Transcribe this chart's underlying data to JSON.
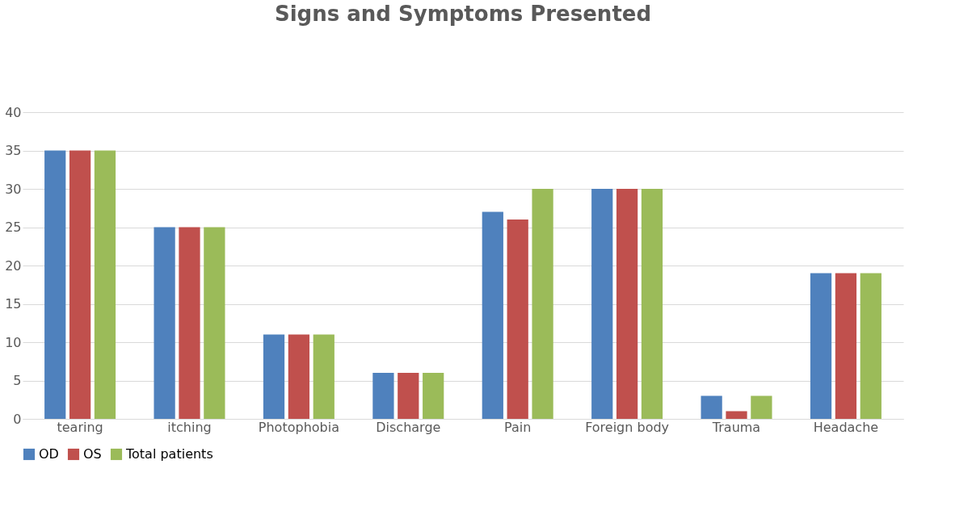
{
  "chart_data": {
    "type": "bar",
    "title": "Signs and Symptoms Presented",
    "categories": [
      "tearing",
      "itching",
      "Photophobia",
      "Discharge",
      "Pain",
      "Foreign body",
      "Trauma",
      "Headache"
    ],
    "series": [
      {
        "name": "OD",
        "color": "#4f81bd",
        "values": [
          35,
          25,
          11,
          6,
          27,
          30,
          3,
          19
        ]
      },
      {
        "name": "OS",
        "color": "#c0504d",
        "values": [
          35,
          25,
          11,
          6,
          26,
          30,
          1,
          19
        ]
      },
      {
        "name": "Total patients",
        "color": "#9bbb59",
        "values": [
          35,
          25,
          11,
          6,
          30,
          30,
          3,
          19
        ]
      }
    ],
    "ylim": [
      0,
      40
    ],
    "yticks": [
      0,
      5,
      10,
      15,
      20,
      25,
      30,
      35,
      40
    ],
    "grid": "y",
    "legend": "bottom"
  }
}
